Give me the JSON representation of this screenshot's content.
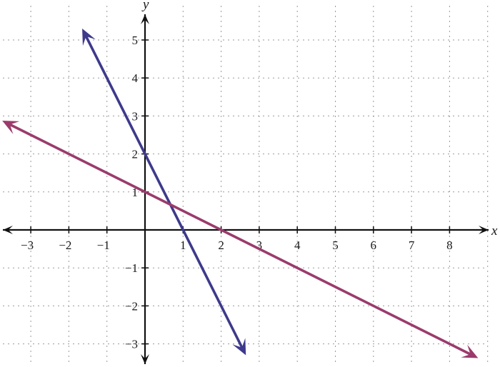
{
  "chart_data": {
    "type": "line",
    "title": "",
    "xlabel": "x",
    "ylabel": "y",
    "xlim": [
      -3.8,
      9.2
    ],
    "ylim": [
      -3.6,
      5.8
    ],
    "grid": true,
    "x_ticks": [
      "−3",
      "−2",
      "−1",
      "1",
      "2",
      "3",
      "4",
      "5",
      "6",
      "7",
      "8"
    ],
    "y_ticks": [
      "5",
      "4",
      "3",
      "2",
      "1",
      "−1",
      "−2",
      "−3"
    ],
    "series": [
      {
        "color": "#3d3a8c",
        "x": [
          -1.65,
          2.65
        ],
        "y": [
          5.3,
          -3.3
        ],
        "arrows": "both"
      },
      {
        "color": "#9b3b6c",
        "x": [
          -3.75,
          8.75
        ],
        "y": [
          2.875,
          -3.375
        ],
        "arrows": "both"
      }
    ]
  }
}
